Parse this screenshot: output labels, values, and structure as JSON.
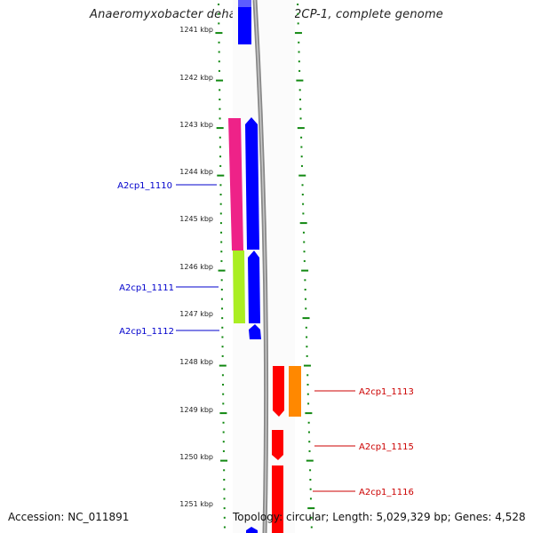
{
  "title": "Anaeromyxobacter dehalogenans 2CP-1, complete genome",
  "accession_text": "Accession: NC_011891",
  "topology_text": "Topology: circular; Length: 5,029,329 bp; Genes: 4,528",
  "scale": {
    "unit": "kbp",
    "ticks": [
      "1241 kbp",
      "1242 kbp",
      "1243 kbp",
      "1244 kbp",
      "1245 kbp",
      "1246 kbp",
      "1247 kbp",
      "1248 kbp",
      "1249 kbp",
      "1250 kbp",
      "1251 kbp"
    ]
  },
  "gene_labels": [
    {
      "name": "A2cp1_1110",
      "strand": "left",
      "color": "#0000cc"
    },
    {
      "name": "A2cp1_1111",
      "strand": "left",
      "color": "#0000cc"
    },
    {
      "name": "A2cp1_1112",
      "strand": "left",
      "color": "#0000cc"
    },
    {
      "name": "A2cp1_1113",
      "strand": "right",
      "color": "#cc0000"
    },
    {
      "name": "A2cp1_1115",
      "strand": "right",
      "color": "#cc0000"
    },
    {
      "name": "A2cp1_1116",
      "strand": "right",
      "color": "#cc0000"
    }
  ],
  "colors": {
    "tick_green": "#118811",
    "backbone": "#8a8a8a",
    "blue_gene": "#0000ff",
    "red_gene": "#ff0000",
    "magenta_feature": "#ee2288",
    "green_feature": "#aaee22",
    "orange_feature": "#ff8800"
  }
}
